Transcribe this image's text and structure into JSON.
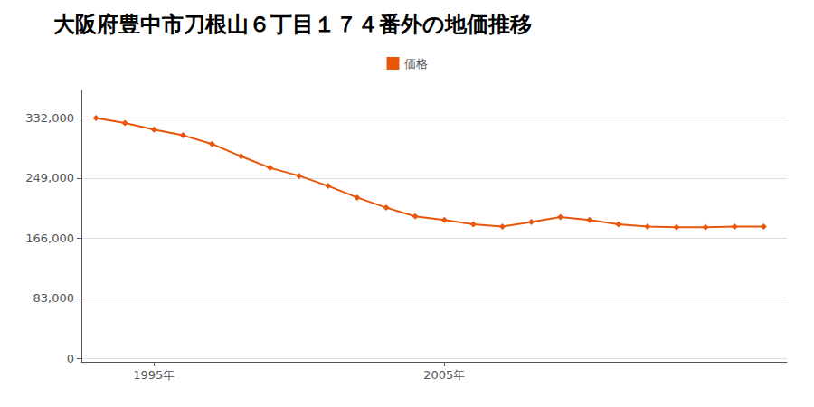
{
  "chart_data": {
    "type": "line",
    "title": "大阪府豊中市刀根山６丁目１７４番外の地価推移",
    "x": [
      1993,
      1994,
      1995,
      1996,
      1997,
      1998,
      1999,
      2000,
      2001,
      2002,
      2003,
      2004,
      2005,
      2006,
      2007,
      2008,
      2009,
      2010,
      2011,
      2012,
      2013,
      2014,
      2015,
      2016
    ],
    "series": [
      {
        "name": "価格",
        "color": "#e8560c",
        "values": [
          332000,
          325000,
          316000,
          308000,
          296000,
          279000,
          263000,
          252000,
          238000,
          222000,
          208000,
          196000,
          191000,
          185000,
          182000,
          188000,
          195000,
          191000,
          185000,
          182000,
          181000,
          181000,
          182000,
          182000
        ]
      }
    ],
    "marker": "diamond",
    "xlim": [
      1992.5,
      2016.8
    ],
    "xticks": [
      {
        "value": 1995,
        "label": "1995年"
      },
      {
        "value": 2005,
        "label": "2005年"
      }
    ],
    "ylim": [
      -5000,
      370000
    ],
    "yticks": [
      0,
      {
        "value": 83000,
        "label": "83,000"
      },
      {
        "value": 166000,
        "label": "166,000"
      },
      {
        "value": 249000,
        "label": "249,000"
      },
      {
        "value": 332000,
        "label": "332,000"
      }
    ],
    "grid": true,
    "legend": "top"
  }
}
